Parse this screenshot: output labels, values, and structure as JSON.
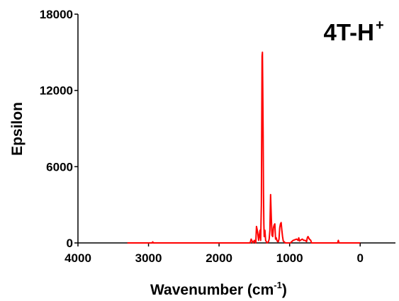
{
  "chart_data": {
    "type": "line",
    "title": "4T-H",
    "title_superscript": "+",
    "xlabel": "Wavenumber (cm",
    "xlabel_superscript": "-1",
    "xlabel_suffix": ")",
    "ylabel": "Epsilon",
    "xlim": [
      4000,
      -500
    ],
    "ylim": [
      0,
      18000
    ],
    "x_ticks": [
      4000,
      3000,
      2000,
      1000,
      0
    ],
    "y_ticks": [
      0,
      6000,
      12000,
      18000
    ],
    "x_tick_labels": [
      "4000",
      "3000",
      "2000",
      "1000",
      "0"
    ],
    "y_tick_labels": [
      "0",
      "6000",
      "12000",
      "18000"
    ],
    "grid": false,
    "legend": "none",
    "series": [
      {
        "color": "#ff0000",
        "x": [
          3300,
          2950,
          2940,
          2930,
          1600,
          1560,
          1545,
          1520,
          1500,
          1480,
          1470,
          1455,
          1440,
          1430,
          1420,
          1410,
          1400,
          1395,
          1390,
          1385,
          1380,
          1375,
          1370,
          1365,
          1360,
          1355,
          1350,
          1340,
          1330,
          1320,
          1300,
          1290,
          1280,
          1270,
          1260,
          1250,
          1240,
          1230,
          1220,
          1210,
          1200,
          1190,
          1180,
          1170,
          1160,
          1150,
          1140,
          1130,
          1120,
          1110,
          1100,
          1090,
          1080,
          1070,
          1060,
          1050,
          1040,
          1030,
          1020,
          1010,
          1000,
          990,
          950,
          900,
          880,
          870,
          860,
          850,
          820,
          800,
          780,
          760,
          750,
          740,
          720,
          700,
          690,
          680,
          660,
          600,
          320,
          310,
          300,
          0
        ],
        "y": [
          0,
          0,
          80,
          0,
          0,
          0,
          300,
          0,
          200,
          0,
          1300,
          900,
          200,
          600,
          1000,
          200,
          3000,
          9000,
          14700,
          15000,
          12000,
          8500,
          4000,
          1500,
          500,
          1000,
          1000,
          200,
          100,
          0,
          100,
          300,
          1000,
          3800,
          2000,
          600,
          500,
          1200,
          1400,
          1500,
          300,
          400,
          200,
          100,
          100,
          300,
          1200,
          1500,
          1600,
          1000,
          500,
          150,
          100,
          50,
          0,
          0,
          0,
          0,
          0,
          0,
          0,
          0,
          200,
          300,
          200,
          400,
          150,
          200,
          300,
          200,
          200,
          100,
          400,
          500,
          300,
          200,
          0,
          0,
          0,
          0,
          0,
          200,
          0,
          0
        ]
      }
    ]
  }
}
